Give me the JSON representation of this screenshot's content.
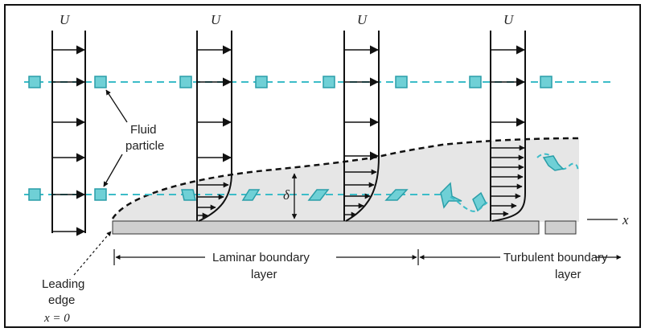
{
  "diagram": {
    "free_stream_label": "U",
    "fluid_particle_label": [
      "Fluid",
      "particle"
    ],
    "thickness_label": "δ",
    "x_axis_label": "x",
    "laminar_label": [
      "Laminar boundary",
      "layer"
    ],
    "turbulent_label": [
      "Turbulent boundary",
      "layer"
    ],
    "leading_edge_label": [
      "Leading",
      "edge"
    ],
    "leading_edge_position": "x = 0",
    "colors": {
      "particle": "#6fd0d6",
      "particle_stroke": "#2a9ea8",
      "boundary_layer_fill": "#e6e6e6",
      "plate": "#cfcfcf",
      "line": "#111111"
    }
  }
}
